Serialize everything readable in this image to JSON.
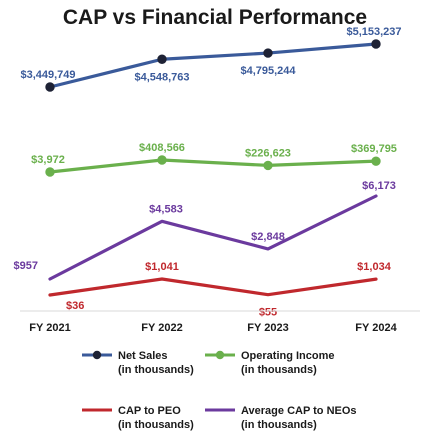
{
  "chart_data": {
    "type": "line",
    "title": "CAP vs Financial Performance",
    "categories": [
      "FY 2021",
      "FY 2022",
      "FY 2023",
      "FY 2024"
    ],
    "series": [
      {
        "name": "Net Sales",
        "legend_lines": [
          "Net Sales",
          "(in thousands)"
        ],
        "color": "#3a5a9a",
        "marker": "dark-dot",
        "values": [
          3449749,
          4548763,
          4795244,
          5153237
        ],
        "labels": [
          "$3,449,749",
          "$4,548,763",
          "$4,795,244",
          "$5,153,237"
        ]
      },
      {
        "name": "Operating Income",
        "legend_lines": [
          "Operating Income",
          "(in thousands)"
        ],
        "color": "#6ab04c",
        "marker": "green-dot",
        "values": [
          3972,
          408566,
          226623,
          369795
        ],
        "labels": [
          "$3,972",
          "$408,566",
          "$226,623",
          "$369,795"
        ]
      },
      {
        "name": "CAP to PEO",
        "legend_lines": [
          "CAP to PEO",
          "(in thousands)"
        ],
        "color": "#c0282d",
        "marker": "none",
        "values": [
          36,
          1041,
          55,
          1034
        ],
        "labels": [
          "$36",
          "$1,041",
          "$55",
          "$1,034"
        ]
      },
      {
        "name": "Average CAP to NEOs",
        "legend_lines": [
          "Average CAP to NEOs",
          "(in thousands)"
        ],
        "color": "#6b3a9e",
        "marker": "none",
        "values": [
          957,
          4583,
          2848,
          6173
        ],
        "labels": [
          "$957",
          "$4,583",
          "$2,848",
          "$6,173"
        ]
      }
    ],
    "grid": false,
    "legend": "bottom"
  }
}
